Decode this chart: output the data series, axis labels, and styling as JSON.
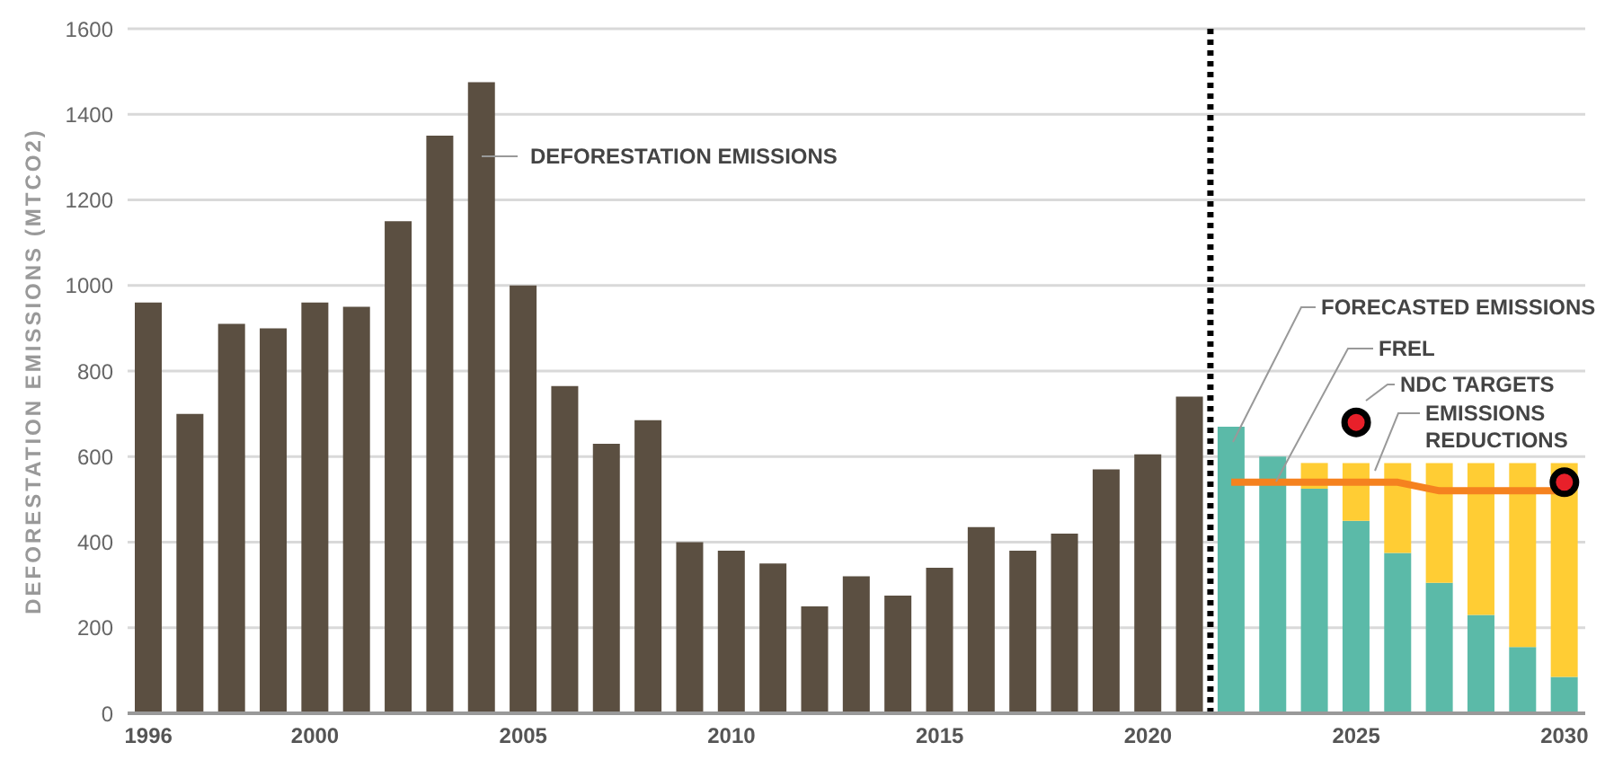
{
  "chart_data": {
    "type": "bar",
    "ylabel": "DEFORESTATION EMISSIONS (MTCO2)",
    "x": [
      1996,
      1997,
      1998,
      1999,
      2000,
      2001,
      2002,
      2003,
      2004,
      2005,
      2006,
      2007,
      2008,
      2009,
      2010,
      2011,
      2012,
      2013,
      2014,
      2015,
      2016,
      2017,
      2018,
      2019,
      2020,
      2021,
      2022,
      2023,
      2024,
      2025,
      2026,
      2027,
      2028,
      2029,
      2030
    ],
    "xlim": [
      1995.5,
      2030.5
    ],
    "xticks": [
      1996,
      2000,
      2005,
      2010,
      2015,
      2020,
      2025,
      2030
    ],
    "ylim": [
      0,
      1600
    ],
    "yticks": [
      0,
      200,
      400,
      600,
      800,
      1000,
      1200,
      1400,
      1600
    ],
    "grid": "y",
    "legend": false,
    "stacked": true,
    "series": [
      {
        "name": "DEFORESTATION EMISSIONS",
        "color": "#5b4f41",
        "values": [
          960,
          700,
          910,
          900,
          960,
          950,
          1150,
          1350,
          1475,
          1000,
          765,
          630,
          685,
          400,
          380,
          350,
          250,
          320,
          275,
          340,
          435,
          380,
          420,
          570,
          605,
          740,
          null,
          null,
          null,
          null,
          null,
          null,
          null,
          null,
          null
        ]
      },
      {
        "name": "FORECASTED EMISSIONS",
        "color": "#5bbaa8",
        "values": [
          null,
          null,
          null,
          null,
          null,
          null,
          null,
          null,
          null,
          null,
          null,
          null,
          null,
          null,
          null,
          null,
          null,
          null,
          null,
          null,
          null,
          null,
          null,
          null,
          null,
          null,
          670,
          600,
          525,
          450,
          375,
          305,
          230,
          155,
          85
        ]
      },
      {
        "name": "EMISSIONS REDUCTIONS",
        "color": "#ffcd34",
        "values": [
          null,
          null,
          null,
          null,
          null,
          null,
          null,
          null,
          null,
          null,
          null,
          null,
          null,
          null,
          null,
          null,
          null,
          null,
          null,
          null,
          null,
          null,
          null,
          null,
          null,
          null,
          null,
          null,
          60,
          135,
          210,
          280,
          355,
          430,
          500
        ]
      },
      {
        "name": "FREL",
        "type": "line",
        "color": "#f5821f",
        "x": [
          2022,
          2023,
          2024,
          2025,
          2026,
          2027,
          2028,
          2029,
          2030
        ],
        "values": [
          540,
          540,
          540,
          540,
          540,
          520,
          520,
          520,
          520
        ]
      },
      {
        "name": "NDC TARGETS",
        "type": "scatter",
        "color": "#e8202a",
        "marker": "circle",
        "x": [
          2025,
          2030
        ],
        "values": [
          680,
          540
        ]
      }
    ],
    "ref_lines": [
      {
        "axis": "x",
        "value": 2021.5,
        "color": "#000000",
        "line_style": "dotted"
      }
    ]
  }
}
